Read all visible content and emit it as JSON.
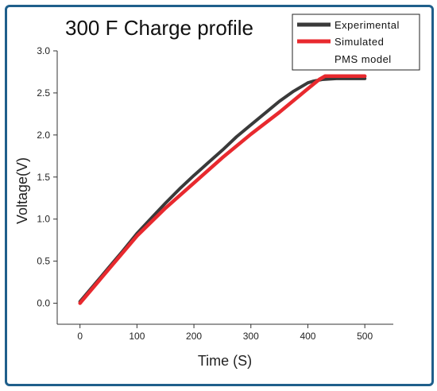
{
  "chart_data": {
    "type": "line",
    "title": "300 F Charge profile",
    "xlabel": "Time (S)",
    "ylabel": "Voltage(V)",
    "xlim": [
      -40,
      550
    ],
    "ylim": [
      -0.25,
      3.0
    ],
    "xticks": [
      0,
      100,
      200,
      300,
      400,
      500
    ],
    "xtick_labels": [
      "0",
      "100",
      "200",
      "300",
      "400",
      "500"
    ],
    "yticks": [
      0.0,
      0.5,
      1.0,
      1.5,
      2.0,
      2.5,
      3.0
    ],
    "ytick_labels": [
      "0.0",
      "0.5",
      "1.0",
      "1.5",
      "2.0",
      "2.5",
      "3.0"
    ],
    "legend_position": "top-right",
    "series": [
      {
        "name": "Experimental",
        "color": "#3a3a3a",
        "x": [
          0,
          25,
          50,
          75,
          100,
          125,
          150,
          175,
          200,
          225,
          250,
          275,
          300,
          325,
          350,
          375,
          400,
          410,
          425,
          450,
          475,
          500
        ],
        "y": [
          0.02,
          0.22,
          0.42,
          0.62,
          0.83,
          1.01,
          1.19,
          1.36,
          1.52,
          1.67,
          1.82,
          1.98,
          2.12,
          2.26,
          2.4,
          2.52,
          2.62,
          2.64,
          2.66,
          2.67,
          2.67,
          2.67
        ]
      },
      {
        "name": "Simulated",
        "legend_extra": "PMS model",
        "color": "#e8292e",
        "x": [
          0,
          50,
          100,
          150,
          200,
          250,
          300,
          350,
          400,
          420,
          430,
          450,
          500
        ],
        "y": [
          0.0,
          0.4,
          0.8,
          1.13,
          1.43,
          1.73,
          2.01,
          2.27,
          2.55,
          2.66,
          2.7,
          2.7,
          2.7
        ]
      }
    ]
  }
}
